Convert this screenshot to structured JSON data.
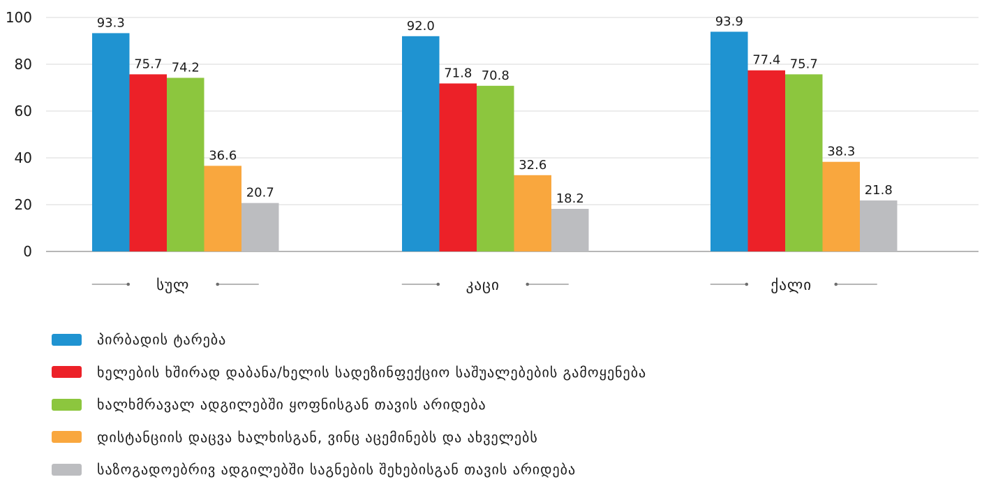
{
  "chart_data": {
    "type": "bar",
    "categories": [
      "სულ",
      "კაცი",
      "ქალი"
    ],
    "series": [
      {
        "name": "პირბადის ტარება",
        "color": "#1f93d1",
        "values": [
          93.3,
          92.0,
          93.9
        ]
      },
      {
        "name": "ხელების ხშირად დაბანა/ხელის სადეზინფექციო საშუალებების გამოყენება",
        "color": "#ec2128",
        "values": [
          75.7,
          71.8,
          77.4
        ]
      },
      {
        "name": "ხალხმრავალ ადგილებში ყოფნისგან თავის არიდება",
        "color": "#8cc63e",
        "values": [
          74.2,
          70.8,
          75.7
        ]
      },
      {
        "name": "დისტანციის დაცვა ხალხისგან, ვინც აცემინებს და ახველებს",
        "color": "#f9a73e",
        "values": [
          36.6,
          32.6,
          38.3
        ]
      },
      {
        "name": "საზოგადოებრივ ადგილებში საგნების შეხებისგან თავის არიდება",
        "color": "#bcbdc0",
        "values": [
          20.7,
          18.2,
          21.8
        ]
      }
    ],
    "data_labels": [
      [
        "93.3",
        "92.0",
        "93.9"
      ],
      [
        "75.7",
        "71.8",
        "77.4"
      ],
      [
        "74.2",
        "70.8",
        "75.7"
      ],
      [
        "36.6",
        "32.6",
        "38.3"
      ],
      [
        "20.7",
        "18.2",
        "21.8"
      ]
    ],
    "yticks": [
      "0",
      "20",
      "40",
      "60",
      "80",
      "100"
    ],
    "ylim": [
      0,
      100
    ],
    "title": "",
    "xlabel": "",
    "ylabel": "",
    "grid": true,
    "legend_position": "bottom-left"
  }
}
